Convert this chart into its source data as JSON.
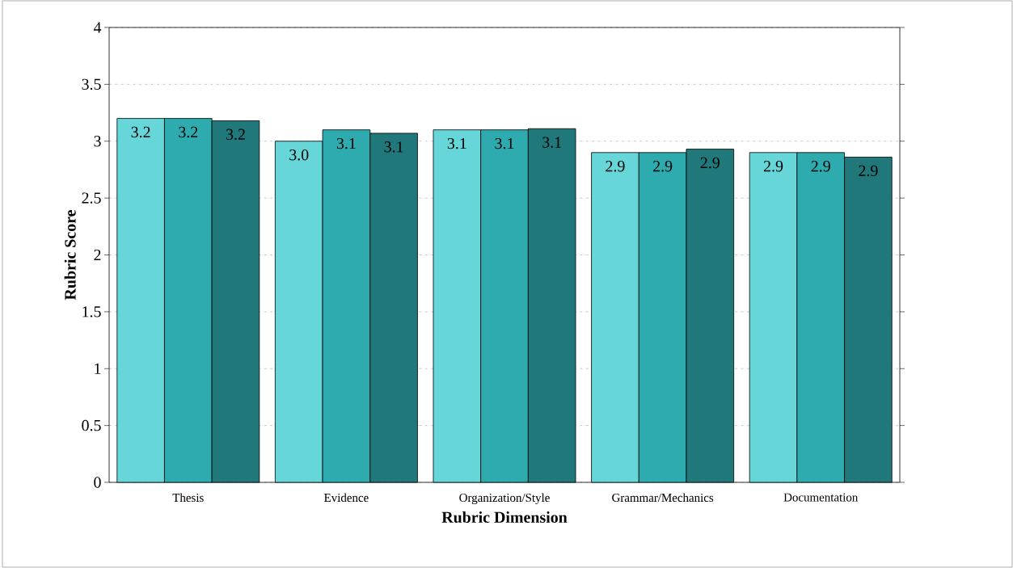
{
  "chart_data": {
    "type": "bar",
    "xlabel": "Rubric Dimension",
    "ylabel": "Rubric Score",
    "categories": [
      "Thesis",
      "Evidence",
      "Organization/Style",
      "Grammar/Mechanics",
      "Documentation"
    ],
    "series": [
      {
        "color": "#66d6d9",
        "values": [
          3.2,
          3.0,
          3.1,
          2.9,
          2.9
        ],
        "value_labels": [
          "3.2",
          "3.0",
          "3.1",
          "2.9",
          "2.9"
        ]
      },
      {
        "color": "#2eabaf",
        "values": [
          3.2,
          3.1,
          3.1,
          2.9,
          2.9
        ],
        "value_labels": [
          "3.2",
          "3.1",
          "3.1",
          "2.9",
          "2.9"
        ]
      },
      {
        "color": "#20787a",
        "values": [
          3.18,
          3.07,
          3.11,
          2.93,
          2.86
        ],
        "value_labels": [
          "3.2",
          "3.1",
          "3.1",
          "2.9",
          "2.9"
        ]
      }
    ],
    "ylim": [
      0,
      4
    ],
    "yticks": [
      0,
      0.5,
      1,
      1.5,
      2,
      2.5,
      3,
      3.5,
      4
    ],
    "grid": "y"
  }
}
